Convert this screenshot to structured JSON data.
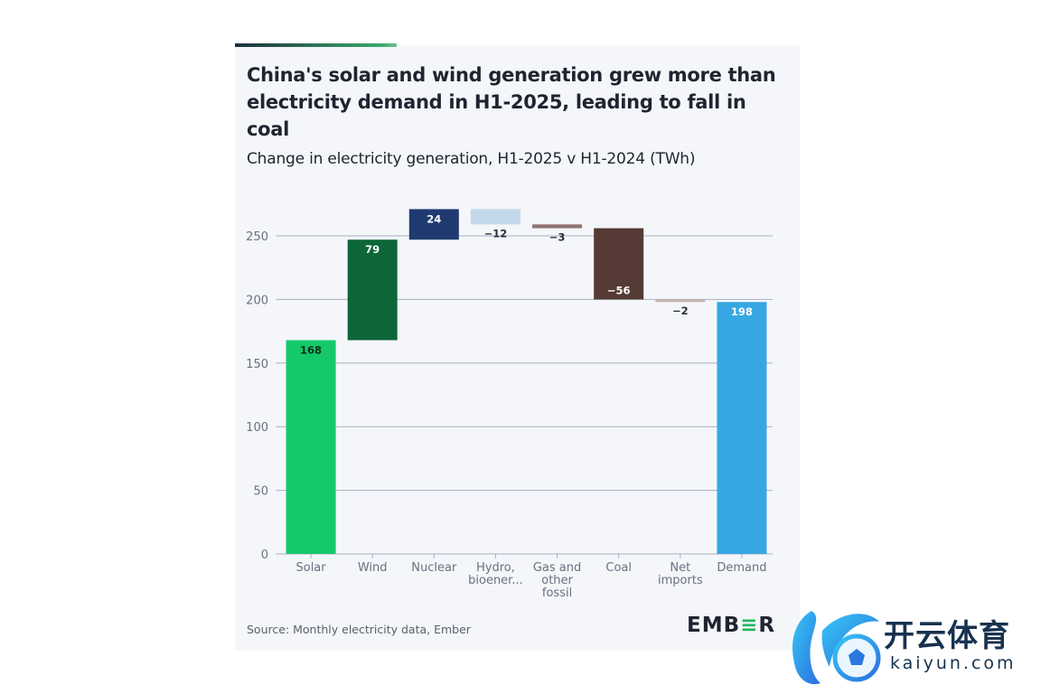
{
  "header": {
    "title": "China's solar and wind generation grew more than electricity demand in H1-2025, leading to fall in coal",
    "subtitle": "Change in electricity generation, H1-2025 v H1-2024 (TWh)"
  },
  "footer": {
    "source": "Source: Monthly electricity data, Ember",
    "logo": "EMBER"
  },
  "watermark": {
    "cn": "开云体育",
    "en": "kaiyun.com"
  },
  "colors": {
    "solar": "#15c96b",
    "wind": "#0d6638",
    "nuclear": "#1f3a70",
    "hydro": "#c3d8ea",
    "gas": "#8e7370",
    "coal": "#553a35",
    "net_imports": "#c5b6b2",
    "demand": "#36a7e3",
    "grid": "#a9b0c2"
  },
  "chart_data": {
    "type": "waterfall",
    "title": "China's solar and wind generation grew more than electricity demand in H1-2025, leading to fall in coal",
    "subtitle": "Change in electricity generation, H1-2025 v H1-2024 (TWh)",
    "xlabel": "",
    "ylabel": "TWh",
    "ylim": [
      0,
      275
    ],
    "yticks": [
      0,
      50,
      100,
      150,
      200,
      250
    ],
    "grid": true,
    "categories": [
      [
        "Solar"
      ],
      [
        "Wind"
      ],
      [
        "Nuclear"
      ],
      [
        "Hydro,",
        "bioener..."
      ],
      [
        "Gas and",
        "other",
        "fossil"
      ],
      [
        "Coal"
      ],
      [
        "Net",
        "imports"
      ],
      [
        "Demand"
      ]
    ],
    "values": [
      168,
      79,
      24,
      -12,
      -3,
      -56,
      -2,
      198
    ],
    "labels": [
      "168",
      "79",
      "24",
      "-12",
      "-3",
      "-56",
      "-2",
      "198"
    ],
    "total_index": 7
  }
}
